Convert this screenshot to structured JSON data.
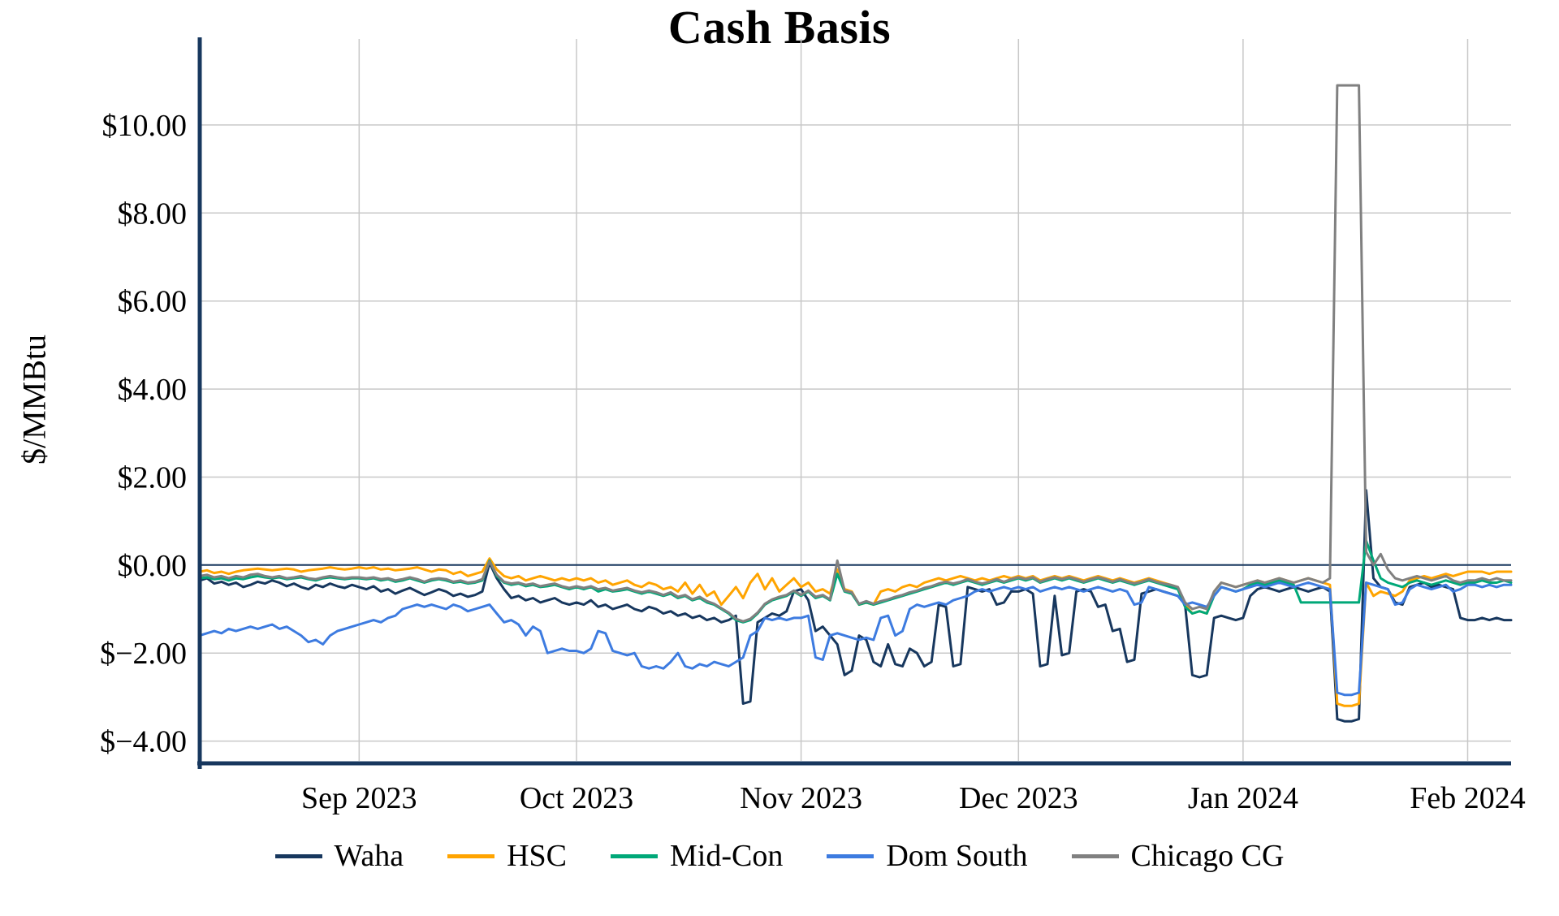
{
  "chart_data": {
    "type": "line",
    "title": "Cash Basis",
    "ylabel": "$/MMBtu",
    "xlabel": "",
    "grid": true,
    "legend_position": "bottom",
    "xlim": [
      0,
      181
    ],
    "ylim": [
      -4.45,
      11.77
    ],
    "x_ticks": [
      {
        "x": 22,
        "label": "Sep 2023"
      },
      {
        "x": 52,
        "label": "Oct 2023"
      },
      {
        "x": 83,
        "label": "Nov 2023"
      },
      {
        "x": 113,
        "label": "Dec 2023"
      },
      {
        "x": 144,
        "label": "Jan 2024"
      },
      {
        "x": 175,
        "label": "Feb 2024"
      }
    ],
    "y_ticks": [
      {
        "value": -4,
        "label": "$−4.00"
      },
      {
        "value": -2,
        "label": "$−2.00"
      },
      {
        "value": 0,
        "label": "$0.00"
      },
      {
        "value": 2,
        "label": "$2.00"
      },
      {
        "value": 4,
        "label": "$4.00"
      },
      {
        "value": 6,
        "label": "$6.00"
      },
      {
        "value": 8,
        "label": "$8.00"
      },
      {
        "value": 10,
        "label": "$10.00"
      }
    ],
    "style": {
      "grid_color": "#C8C8C8",
      "axis_color": "#17375E",
      "zero_line_color": "#17375E",
      "background": "#FFFFFF"
    },
    "series": [
      {
        "name": "Waha",
        "id": "waha",
        "color": "#17375E",
        "values": [
          -0.35,
          -0.3,
          -0.42,
          -0.38,
          -0.45,
          -0.4,
          -0.5,
          -0.45,
          -0.38,
          -0.42,
          -0.35,
          -0.4,
          -0.48,
          -0.42,
          -0.5,
          -0.55,
          -0.45,
          -0.5,
          -0.42,
          -0.48,
          -0.52,
          -0.45,
          -0.5,
          -0.55,
          -0.48,
          -0.6,
          -0.55,
          -0.65,
          -0.58,
          -0.52,
          -0.6,
          -0.68,
          -0.62,
          -0.55,
          -0.6,
          -0.7,
          -0.65,
          -0.72,
          -0.68,
          -0.6,
          0.05,
          -0.3,
          -0.55,
          -0.75,
          -0.7,
          -0.8,
          -0.75,
          -0.85,
          -0.8,
          -0.75,
          -0.85,
          -0.9,
          -0.85,
          -0.9,
          -0.8,
          -0.95,
          -0.9,
          -1.0,
          -0.95,
          -0.9,
          -1.0,
          -1.05,
          -0.95,
          -1.0,
          -1.1,
          -1.05,
          -1.15,
          -1.1,
          -1.2,
          -1.15,
          -1.25,
          -1.2,
          -1.3,
          -1.25,
          -1.15,
          -3.15,
          -3.1,
          -1.3,
          -1.2,
          -1.1,
          -1.15,
          -1.05,
          -0.6,
          -0.55,
          -0.8,
          -1.5,
          -1.4,
          -1.6,
          -1.8,
          -2.5,
          -2.4,
          -1.6,
          -1.7,
          -2.2,
          -2.3,
          -1.8,
          -2.25,
          -2.3,
          -1.9,
          -2.0,
          -2.3,
          -2.2,
          -0.9,
          -0.95,
          -2.3,
          -2.25,
          -0.5,
          -0.55,
          -0.6,
          -0.55,
          -0.9,
          -0.85,
          -0.6,
          -0.6,
          -0.55,
          -0.65,
          -2.3,
          -2.25,
          -0.7,
          -2.05,
          -2.0,
          -0.6,
          -0.55,
          -0.6,
          -0.95,
          -0.9,
          -1.5,
          -1.45,
          -2.2,
          -2.15,
          -0.65,
          -0.6,
          -0.55,
          -0.6,
          -0.65,
          -0.7,
          -0.9,
          -2.5,
          -2.55,
          -2.5,
          -1.2,
          -1.15,
          -1.2,
          -1.25,
          -1.2,
          -0.7,
          -0.55,
          -0.5,
          -0.55,
          -0.6,
          -0.55,
          -0.5,
          -0.55,
          -0.6,
          -0.55,
          -0.5,
          -0.6,
          -3.5,
          -3.55,
          -3.55,
          -3.5,
          1.7,
          -0.3,
          -0.5,
          -0.55,
          -0.85,
          -0.9,
          -0.5,
          -0.45,
          -0.4,
          -0.5,
          -0.45,
          -0.5,
          -0.55,
          -1.2,
          -1.25,
          -1.25,
          -1.2,
          -1.25,
          -1.2,
          -1.25,
          -1.25
        ]
      },
      {
        "name": "HSC",
        "id": "hsc",
        "color": "#FFA400",
        "values": [
          -0.15,
          -0.12,
          -0.18,
          -0.15,
          -0.2,
          -0.15,
          -0.12,
          -0.1,
          -0.08,
          -0.1,
          -0.12,
          -0.1,
          -0.08,
          -0.1,
          -0.15,
          -0.12,
          -0.1,
          -0.08,
          -0.05,
          -0.08,
          -0.1,
          -0.08,
          -0.05,
          -0.08,
          -0.05,
          -0.1,
          -0.08,
          -0.12,
          -0.1,
          -0.08,
          -0.05,
          -0.1,
          -0.15,
          -0.1,
          -0.12,
          -0.2,
          -0.15,
          -0.25,
          -0.2,
          -0.15,
          0.15,
          -0.1,
          -0.25,
          -0.3,
          -0.25,
          -0.35,
          -0.3,
          -0.25,
          -0.3,
          -0.35,
          -0.3,
          -0.35,
          -0.3,
          -0.35,
          -0.3,
          -0.4,
          -0.35,
          -0.45,
          -0.4,
          -0.35,
          -0.45,
          -0.5,
          -0.4,
          -0.45,
          -0.55,
          -0.5,
          -0.6,
          -0.4,
          -0.65,
          -0.45,
          -0.7,
          -0.6,
          -0.9,
          -0.7,
          -0.5,
          -0.75,
          -0.4,
          -0.2,
          -0.55,
          -0.3,
          -0.6,
          -0.45,
          -0.3,
          -0.5,
          -0.4,
          -0.6,
          -0.55,
          -0.65,
          -0.1,
          -0.55,
          -0.6,
          -0.9,
          -0.85,
          -0.9,
          -0.6,
          -0.55,
          -0.6,
          -0.5,
          -0.45,
          -0.5,
          -0.4,
          -0.35,
          -0.3,
          -0.35,
          -0.3,
          -0.25,
          -0.3,
          -0.35,
          -0.3,
          -0.35,
          -0.3,
          -0.25,
          -0.3,
          -0.25,
          -0.3,
          -0.25,
          -0.35,
          -0.3,
          -0.25,
          -0.3,
          -0.25,
          -0.3,
          -0.35,
          -0.3,
          -0.25,
          -0.3,
          -0.35,
          -0.3,
          -0.35,
          -0.4,
          -0.35,
          -0.3,
          -0.35,
          -0.4,
          -0.45,
          -0.5,
          -0.9,
          -1.1,
          -1.05,
          -1.1,
          -0.6,
          -0.4,
          -0.45,
          -0.5,
          -0.45,
          -0.4,
          -0.35,
          -0.4,
          -0.35,
          -0.3,
          -0.35,
          -0.4,
          -0.35,
          -0.3,
          -0.35,
          -0.4,
          -0.45,
          -3.15,
          -3.2,
          -3.2,
          -3.15,
          -0.4,
          -0.7,
          -0.6,
          -0.65,
          -0.7,
          -0.6,
          -0.35,
          -0.3,
          -0.25,
          -0.3,
          -0.25,
          -0.2,
          -0.25,
          -0.2,
          -0.15,
          -0.15,
          -0.15,
          -0.2,
          -0.15,
          -0.15,
          -0.15
        ]
      },
      {
        "name": "Mid-Con",
        "id": "mid-con",
        "color": "#00A878",
        "values": [
          -0.3,
          -0.28,
          -0.32,
          -0.3,
          -0.35,
          -0.3,
          -0.32,
          -0.28,
          -0.25,
          -0.28,
          -0.3,
          -0.28,
          -0.32,
          -0.3,
          -0.28,
          -0.32,
          -0.35,
          -0.3,
          -0.28,
          -0.3,
          -0.32,
          -0.3,
          -0.3,
          -0.32,
          -0.3,
          -0.35,
          -0.32,
          -0.38,
          -0.35,
          -0.3,
          -0.35,
          -0.4,
          -0.35,
          -0.32,
          -0.35,
          -0.4,
          -0.38,
          -0.42,
          -0.4,
          -0.35,
          0.1,
          -0.25,
          -0.4,
          -0.45,
          -0.42,
          -0.48,
          -0.45,
          -0.5,
          -0.48,
          -0.45,
          -0.5,
          -0.55,
          -0.5,
          -0.55,
          -0.5,
          -0.6,
          -0.55,
          -0.6,
          -0.58,
          -0.55,
          -0.6,
          -0.65,
          -0.6,
          -0.65,
          -0.7,
          -0.65,
          -0.75,
          -0.7,
          -0.8,
          -0.75,
          -0.85,
          -0.9,
          -1.0,
          -1.1,
          -1.25,
          -1.3,
          -1.25,
          -1.1,
          -0.9,
          -0.8,
          -0.75,
          -0.7,
          -0.6,
          -0.7,
          -0.6,
          -0.75,
          -0.7,
          -0.8,
          -0.2,
          -0.6,
          -0.65,
          -0.9,
          -0.85,
          -0.9,
          -0.85,
          -0.8,
          -0.75,
          -0.7,
          -0.65,
          -0.6,
          -0.55,
          -0.5,
          -0.45,
          -0.4,
          -0.45,
          -0.4,
          -0.35,
          -0.4,
          -0.45,
          -0.4,
          -0.35,
          -0.4,
          -0.35,
          -0.3,
          -0.35,
          -0.3,
          -0.4,
          -0.35,
          -0.3,
          -0.35,
          -0.3,
          -0.35,
          -0.4,
          -0.35,
          -0.3,
          -0.35,
          -0.4,
          -0.35,
          -0.4,
          -0.45,
          -0.4,
          -0.35,
          -0.4,
          -0.45,
          -0.5,
          -0.55,
          -0.95,
          -1.1,
          -1.05,
          -1.1,
          -0.7,
          -0.5,
          -0.55,
          -0.6,
          -0.55,
          -0.45,
          -0.4,
          -0.45,
          -0.4,
          -0.35,
          -0.4,
          -0.45,
          -0.85,
          -0.85,
          -0.85,
          -0.85,
          -0.85,
          -0.85,
          -0.85,
          -0.85,
          -0.85,
          0.55,
          0.1,
          -0.3,
          -0.4,
          -0.45,
          -0.5,
          -0.4,
          -0.35,
          -0.4,
          -0.45,
          -0.4,
          -0.35,
          -0.4,
          -0.45,
          -0.4,
          -0.4,
          -0.35,
          -0.4,
          -0.4,
          -0.35,
          -0.4
        ]
      },
      {
        "name": "Dom South",
        "id": "dom-south",
        "color": "#3D7BE0",
        "values": [
          -1.6,
          -1.55,
          -1.5,
          -1.55,
          -1.45,
          -1.5,
          -1.45,
          -1.4,
          -1.45,
          -1.4,
          -1.35,
          -1.45,
          -1.4,
          -1.5,
          -1.6,
          -1.75,
          -1.7,
          -1.8,
          -1.6,
          -1.5,
          -1.45,
          -1.4,
          -1.35,
          -1.3,
          -1.25,
          -1.3,
          -1.2,
          -1.15,
          -1.0,
          -0.95,
          -0.9,
          -0.95,
          -0.9,
          -0.95,
          -1.0,
          -0.9,
          -0.95,
          -1.05,
          -1.0,
          -0.95,
          -0.9,
          -1.1,
          -1.3,
          -1.25,
          -1.35,
          -1.6,
          -1.4,
          -1.5,
          -2.0,
          -1.95,
          -1.9,
          -1.95,
          -1.95,
          -2.0,
          -1.9,
          -1.5,
          -1.55,
          -1.95,
          -2.0,
          -2.05,
          -2.0,
          -2.3,
          -2.35,
          -2.3,
          -2.35,
          -2.2,
          -2.0,
          -2.3,
          -2.35,
          -2.25,
          -2.3,
          -2.2,
          -2.25,
          -2.3,
          -2.2,
          -2.1,
          -1.6,
          -1.5,
          -1.2,
          -1.25,
          -1.2,
          -1.25,
          -1.2,
          -1.2,
          -1.15,
          -2.1,
          -2.15,
          -1.6,
          -1.55,
          -1.6,
          -1.65,
          -1.7,
          -1.65,
          -1.7,
          -1.2,
          -1.15,
          -1.6,
          -1.5,
          -1.0,
          -0.9,
          -0.95,
          -0.9,
          -0.85,
          -0.9,
          -0.8,
          -0.75,
          -0.7,
          -0.6,
          -0.55,
          -0.6,
          -0.55,
          -0.5,
          -0.55,
          -0.5,
          -0.55,
          -0.5,
          -0.6,
          -0.55,
          -0.5,
          -0.55,
          -0.5,
          -0.55,
          -0.6,
          -0.55,
          -0.5,
          -0.55,
          -0.6,
          -0.55,
          -0.6,
          -0.9,
          -0.85,
          -0.5,
          -0.55,
          -0.6,
          -0.65,
          -0.7,
          -0.9,
          -0.85,
          -0.9,
          -0.95,
          -0.7,
          -0.5,
          -0.55,
          -0.6,
          -0.55,
          -0.5,
          -0.45,
          -0.5,
          -0.45,
          -0.4,
          -0.45,
          -0.5,
          -0.45,
          -0.4,
          -0.45,
          -0.5,
          -0.55,
          -2.9,
          -2.95,
          -2.95,
          -2.9,
          -0.4,
          -0.45,
          -0.5,
          -0.55,
          -0.9,
          -0.85,
          -0.55,
          -0.45,
          -0.5,
          -0.55,
          -0.5,
          -0.45,
          -0.6,
          -0.55,
          -0.45,
          -0.45,
          -0.5,
          -0.45,
          -0.5,
          -0.45,
          -0.45
        ]
      },
      {
        "name": "Chicago CG",
        "id": "chicago-cg",
        "color": "#808080",
        "values": [
          -0.25,
          -0.22,
          -0.28,
          -0.25,
          -0.3,
          -0.25,
          -0.28,
          -0.22,
          -0.2,
          -0.25,
          -0.28,
          -0.25,
          -0.3,
          -0.28,
          -0.25,
          -0.3,
          -0.32,
          -0.28,
          -0.25,
          -0.28,
          -0.3,
          -0.28,
          -0.28,
          -0.3,
          -0.28,
          -0.32,
          -0.3,
          -0.35,
          -0.32,
          -0.28,
          -0.32,
          -0.38,
          -0.32,
          -0.3,
          -0.32,
          -0.38,
          -0.35,
          -0.4,
          -0.38,
          -0.32,
          0.08,
          -0.22,
          -0.38,
          -0.42,
          -0.4,
          -0.45,
          -0.42,
          -0.48,
          -0.45,
          -0.42,
          -0.48,
          -0.52,
          -0.48,
          -0.52,
          -0.48,
          -0.55,
          -0.52,
          -0.58,
          -0.55,
          -0.52,
          -0.58,
          -0.62,
          -0.58,
          -0.62,
          -0.68,
          -0.62,
          -0.72,
          -0.68,
          -0.78,
          -0.72,
          -0.82,
          -0.88,
          -0.98,
          -1.08,
          -1.22,
          -1.28,
          -1.22,
          -1.08,
          -0.88,
          -0.78,
          -0.72,
          -0.68,
          -0.58,
          -0.68,
          -0.58,
          -0.72,
          -0.68,
          -0.78,
          0.1,
          -0.58,
          -0.62,
          -0.88,
          -0.82,
          -0.88,
          -0.82,
          -0.78,
          -0.72,
          -0.68,
          -0.62,
          -0.58,
          -0.52,
          -0.48,
          -0.42,
          -0.38,
          -0.42,
          -0.38,
          -0.32,
          -0.38,
          -0.42,
          -0.38,
          -0.32,
          -0.38,
          -0.32,
          -0.28,
          -0.32,
          -0.28,
          -0.38,
          -0.32,
          -0.28,
          -0.32,
          -0.28,
          -0.32,
          -0.38,
          -0.32,
          -0.28,
          -0.32,
          -0.38,
          -0.32,
          -0.38,
          -0.42,
          -0.38,
          -0.32,
          -0.38,
          -0.42,
          -0.45,
          -0.5,
          -0.85,
          -1.0,
          -0.95,
          -1.0,
          -0.6,
          -0.4,
          -0.45,
          -0.5,
          -0.45,
          -0.4,
          -0.35,
          -0.4,
          -0.35,
          -0.3,
          -0.35,
          -0.4,
          -0.35,
          -0.3,
          -0.35,
          -0.4,
          -0.3,
          10.9,
          10.9,
          10.9,
          10.9,
          0.3,
          0.0,
          0.25,
          -0.1,
          -0.3,
          -0.35,
          -0.3,
          -0.25,
          -0.3,
          -0.35,
          -0.3,
          -0.25,
          -0.35,
          -0.4,
          -0.35,
          -0.35,
          -0.3,
          -0.35,
          -0.3,
          -0.35,
          -0.35
        ]
      }
    ]
  }
}
